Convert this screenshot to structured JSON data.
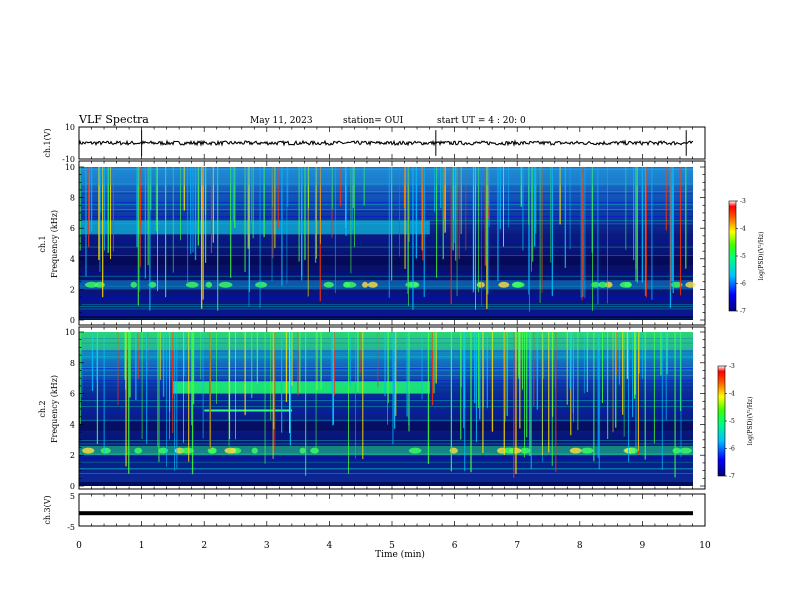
{
  "header": {
    "title": "VLF Spectra",
    "date": "May 11, 2023",
    "station": "station= OUI",
    "start": "start  UT =  4 : 20: 0"
  },
  "chart_data": [
    {
      "type": "line",
      "id": "ch1-waveform",
      "ylabel": "ch.1(V)",
      "ylim": [
        -10,
        10
      ],
      "yticks": [
        "10",
        "-10"
      ],
      "xlim": [
        0,
        10
      ],
      "description_values": {
        "baseline": 0,
        "noise_amplitude": 1.2,
        "spikes_min": [
          1.0,
          5.7,
          9.7
        ]
      }
    },
    {
      "type": "heatmap",
      "id": "ch1-spectrogram",
      "ylabel": "Frequency (kHz)",
      "panel_label": "ch.1",
      "ylim": [
        0,
        10
      ],
      "yticks": [
        "0",
        "2",
        "4",
        "6",
        "8",
        "10"
      ],
      "xlim": [
        0,
        9.8
      ],
      "features": {
        "band_kHz": [
          5.6,
          6.5
        ],
        "band_end_min": 5.6,
        "hiss_kHz": [
          2.0,
          2.6
        ],
        "sferics": true
      },
      "colorbar": {
        "label": "log(PSD)(V²/Hz)",
        "range": [
          -7,
          -3
        ],
        "ticks": [
          "-3",
          "-4",
          "-5",
          "-6",
          "-7"
        ]
      }
    },
    {
      "type": "heatmap",
      "id": "ch2-spectrogram",
      "ylabel": "Frequency (kHz)",
      "panel_label": "ch.2",
      "ylim": [
        0,
        10
      ],
      "yticks": [
        "0",
        "2",
        "4",
        "6",
        "8",
        "10"
      ],
      "xlim": [
        0,
        9.8
      ],
      "features": {
        "band_kHz": [
          6.0,
          6.8
        ],
        "band_start_min": 1.5,
        "band_end_min": 5.6,
        "hiss_kHz": [
          2.0,
          2.6
        ],
        "sferics": true
      },
      "colorbar": {
        "label": "log(PSD)(V²/Hz)",
        "range": [
          -7,
          -3
        ],
        "ticks": [
          "-3",
          "-4",
          "-5",
          "-6",
          "-7"
        ]
      }
    },
    {
      "type": "line",
      "id": "ch3-waveform",
      "ylabel": "ch.3(V)",
      "ylim": [
        -5,
        5
      ],
      "yticks": [
        "5",
        "-5"
      ],
      "xlim": [
        0,
        10
      ],
      "description_values": {
        "baseline": -1
      }
    }
  ],
  "xaxis": {
    "label": "Time (min)",
    "ticks": [
      "0",
      "1",
      "2",
      "3",
      "4",
      "5",
      "6",
      "7",
      "8",
      "9",
      "10"
    ],
    "range": [
      0,
      10
    ]
  },
  "colors": {
    "deep": "#00007a",
    "hi": "#ff0000",
    "axis": "#000000"
  }
}
